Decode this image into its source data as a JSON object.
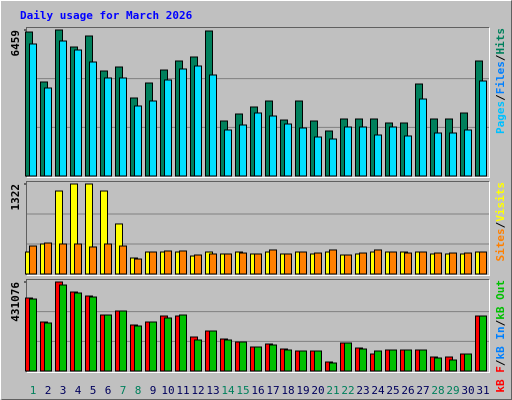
{
  "chart_data": [
    {
      "type": "bar",
      "title": "Daily usage for March 2026",
      "ylim": [
        0,
        6459
      ],
      "yticks": [
        6459
      ],
      "legend": [
        {
          "name": "Pages",
          "color": "#00c0ff"
        },
        {
          "name": "Files",
          "color": "#0080ff"
        },
        {
          "name": "Hits",
          "color": "#00805c"
        }
      ],
      "series": [
        {
          "name": "Hits",
          "color": "#00805c",
          "values": [
            6370,
            4159,
            6459,
            5707,
            6194,
            4645,
            4822,
            3451,
            4114,
            4689,
            5088,
            5265,
            6415,
            2433,
            2743,
            3053,
            3318,
            2477,
            3318,
            2433,
            1991,
            2522,
            2522,
            2522,
            2345,
            2345,
            4070,
            2522,
            2522,
            2787,
            5088
          ]
        },
        {
          "name": "Files",
          "color": "#00e0ff",
          "values": [
            5840,
            3893,
            5972,
            5574,
            5043,
            4336,
            4336,
            3097,
            3318,
            4247,
            4734,
            4866,
            4468,
            2035,
            2256,
            2787,
            2654,
            2300,
            2124,
            1725,
            1637,
            2168,
            2168,
            1814,
            2168,
            1770,
            3406,
            1902,
            1902,
            2035,
            4203
          ]
        }
      ]
    },
    {
      "type": "bar",
      "ylim": [
        0,
        1322
      ],
      "yticks": [
        1322
      ],
      "legend": [
        {
          "name": "Sites",
          "color": "#ff8000"
        },
        {
          "name": "Visits",
          "color": "#ffff00"
        }
      ],
      "series": [
        {
          "name": "Visits",
          "color": "#ffff00",
          "values": [
            323,
            441,
            1219,
            1322,
            1322,
            1219,
            735,
            235,
            323,
            323,
            323,
            264,
            323,
            294,
            323,
            294,
            323,
            294,
            323,
            294,
            323,
            279,
            294,
            323,
            323,
            323,
            323,
            294,
            294,
            294,
            323
          ]
        },
        {
          "name": "Sites",
          "color": "#ff8000",
          "values": [
            411,
            455,
            441,
            441,
            397,
            441,
            411,
            220,
            323,
            338,
            338,
            279,
            294,
            294,
            308,
            294,
            353,
            294,
            323,
            308,
            353,
            279,
            308,
            353,
            323,
            308,
            323,
            308,
            308,
            308,
            323
          ]
        }
      ]
    },
    {
      "type": "bar",
      "ylim": [
        0,
        431076
      ],
      "yticks": [
        431076
      ],
      "legend": [
        {
          "name": "kB F",
          "color": "#ff0000"
        },
        {
          "name": "kB In",
          "color": "#0080ff"
        },
        {
          "name": "kB Out",
          "color": "#00c000"
        }
      ],
      "series": [
        {
          "name": "kB F",
          "color": "#ff0000",
          "values": [
            353539,
            237307,
            431076,
            382597,
            363225,
            271208,
            290580,
            222778,
            237307,
            266365,
            266365,
            164662,
            193720,
            154976,
            140447,
            116232,
            130761,
            106546,
            96860,
            96860,
            43587,
            135604,
            111389,
            82331,
            101703,
            101703,
            101703,
            67802,
            67802,
            82331,
            266365
          ]
        },
        {
          "name": "kB Out",
          "color": "#00c000",
          "values": [
            348696,
            232464,
            416498,
            377754,
            358382,
            271208,
            290580,
            217935,
            237307,
            256679,
            271208,
            150133,
            193720,
            150133,
            140447,
            116232,
            125918,
            101703,
            96860,
            96860,
            38744,
            135604,
            106546,
            96860,
            101703,
            101703,
            101703,
            62959,
            53273,
            82331,
            266365
          ]
        }
      ],
      "categories": [
        "1",
        "2",
        "3",
        "4",
        "5",
        "6",
        "7",
        "8",
        "9",
        "10",
        "11",
        "12",
        "13",
        "14",
        "15",
        "16",
        "17",
        "18",
        "19",
        "20",
        "21",
        "22",
        "23",
        "24",
        "25",
        "26",
        "27",
        "28",
        "29",
        "30",
        "31"
      ],
      "category_colors": [
        "#00805c",
        "#00005c",
        "#00005c",
        "#00005c",
        "#00005c",
        "#00005c",
        "#00805c",
        "#00805c",
        "#00005c",
        "#00005c",
        "#00005c",
        "#00005c",
        "#00005c",
        "#00805c",
        "#00805c",
        "#00005c",
        "#00005c",
        "#00005c",
        "#00005c",
        "#00005c",
        "#00805c",
        "#00805c",
        "#00005c",
        "#00005c",
        "#00005c",
        "#00005c",
        "#00005c",
        "#00805c",
        "#00805c",
        "#00005c",
        "#00005c"
      ]
    }
  ],
  "legend_separator": "/"
}
